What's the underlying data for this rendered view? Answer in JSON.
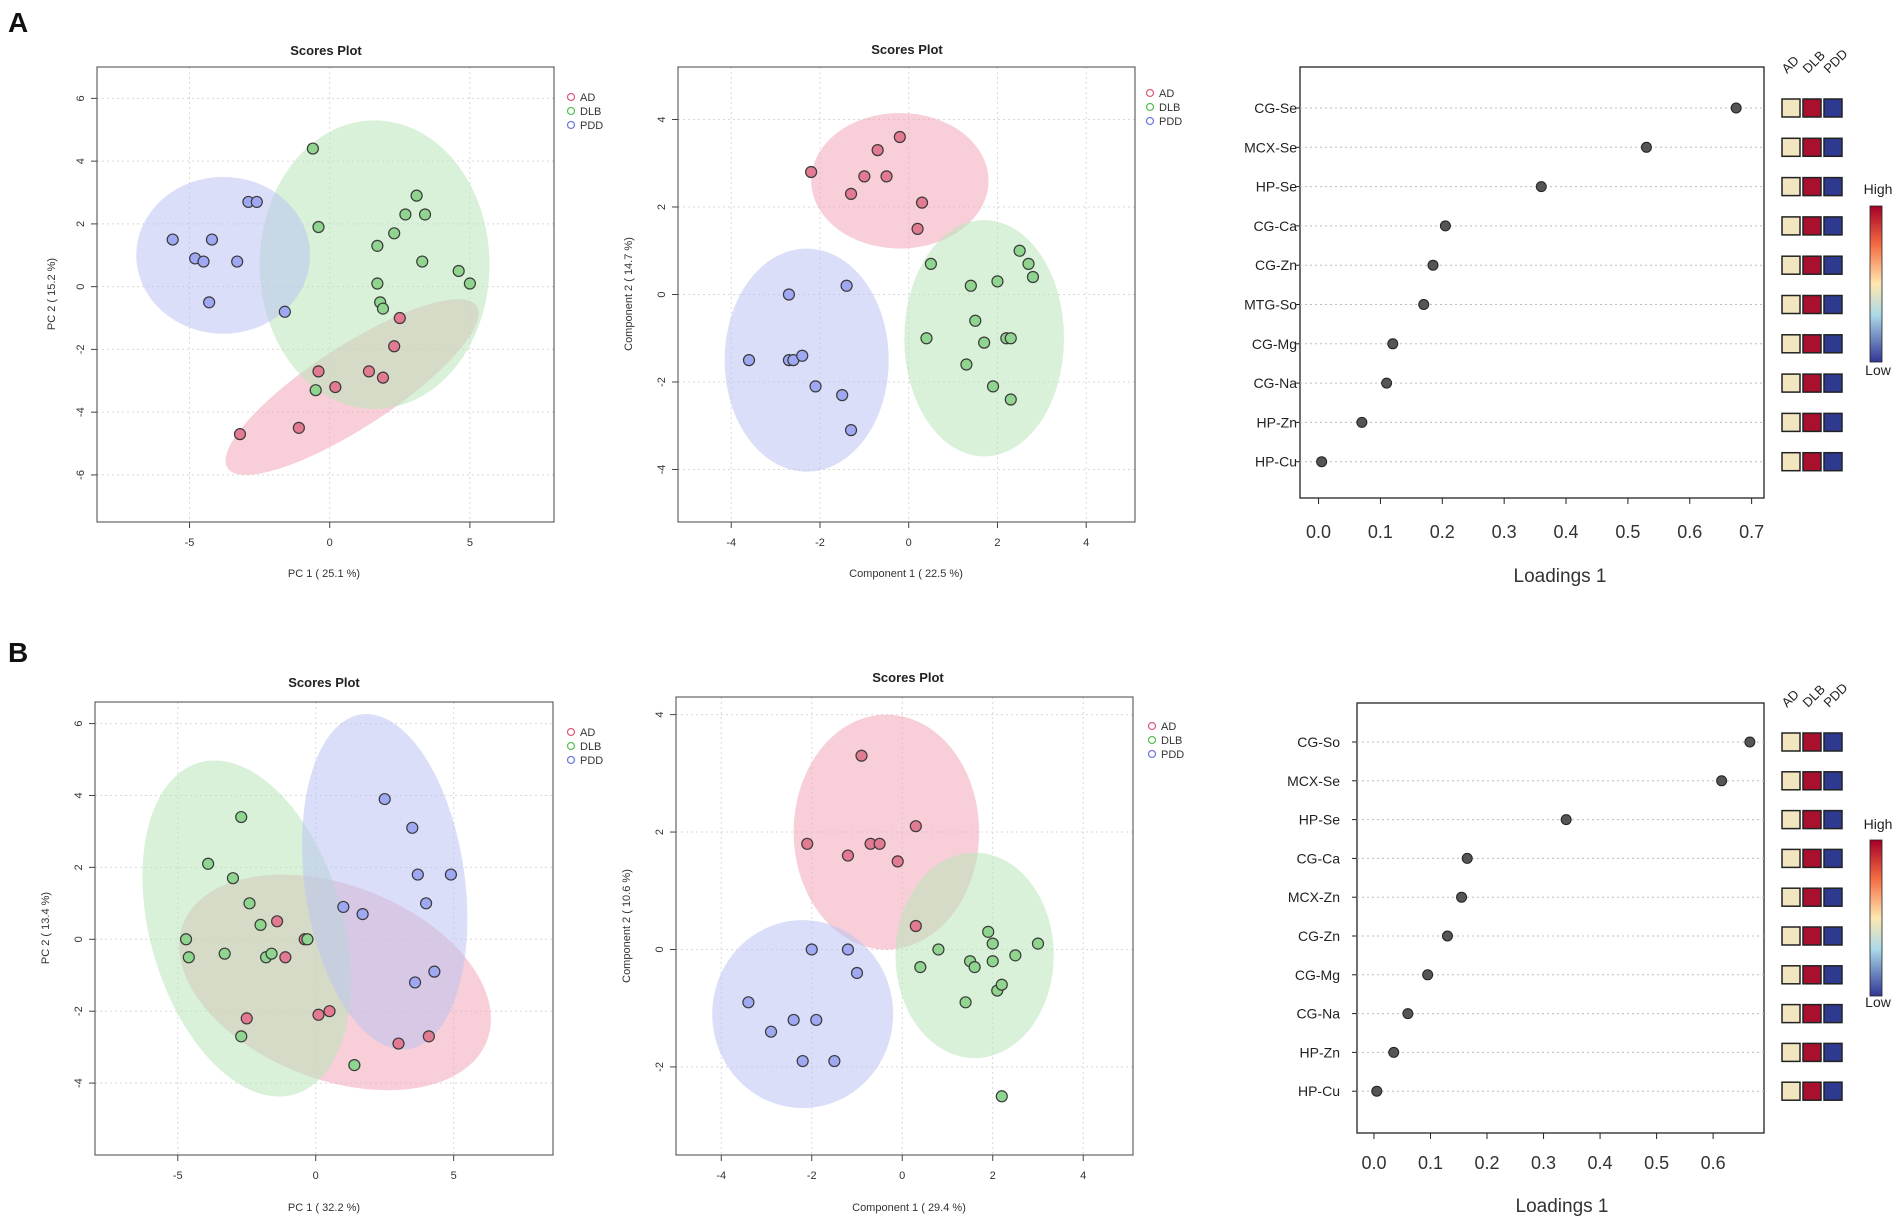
{
  "panels": [
    {
      "label": "A",
      "scores": {
        "title": "Scores Plot",
        "xlabel": "PC 1 ( 25.1 %)",
        "ylabel": "PC 2 ( 15.2 %)",
        "xlim": [
          -8.3,
          8.0
        ],
        "ylim": [
          -7.5,
          7.0
        ],
        "xticks": [
          -5,
          0,
          5
        ],
        "yticks": [
          -6,
          -4,
          -2,
          0,
          2,
          4,
          6
        ],
        "legend": [
          "AD",
          "DLB",
          "PDD"
        ],
        "series": [
          {
            "name": "AD",
            "ellipse": {
              "cx": 0.8,
              "cy": -3.2,
              "rx": 5.3,
              "ry": 1.3,
              "angle_deg": 33
            },
            "points": [
              [
                -3.2,
                -4.7
              ],
              [
                -1.1,
                -4.5
              ],
              [
                -0.4,
                -2.7
              ],
              [
                0.2,
                -3.2
              ],
              [
                1.4,
                -2.7
              ],
              [
                1.9,
                -2.9
              ],
              [
                2.3,
                -1.9
              ],
              [
                2.5,
                -1.0
              ]
            ]
          },
          {
            "name": "DLB",
            "ellipse": {
              "cx": 1.6,
              "cy": 0.7,
              "rx": 4.1,
              "ry": 4.6,
              "angle_deg": 0
            },
            "points": [
              [
                -0.6,
                4.4
              ],
              [
                -0.4,
                1.9
              ],
              [
                1.7,
                1.3
              ],
              [
                2.3,
                1.7
              ],
              [
                2.7,
                2.3
              ],
              [
                3.1,
                2.9
              ],
              [
                3.4,
                2.3
              ],
              [
                3.3,
                0.8
              ],
              [
                4.6,
                0.5
              ],
              [
                5.0,
                0.1
              ],
              [
                1.7,
                0.1
              ],
              [
                1.8,
                -0.5
              ],
              [
                1.9,
                -0.7
              ],
              [
                -0.5,
                -3.3
              ]
            ]
          },
          {
            "name": "PDD",
            "ellipse": {
              "cx": -3.8,
              "cy": 1.0,
              "rx": 3.1,
              "ry": 2.5,
              "angle_deg": 0
            },
            "points": [
              [
                -5.6,
                1.5
              ],
              [
                -4.8,
                0.9
              ],
              [
                -4.5,
                0.8
              ],
              [
                -4.2,
                1.5
              ],
              [
                -2.9,
                2.7
              ],
              [
                -2.6,
                2.7
              ],
              [
                -3.3,
                0.8
              ],
              [
                -4.3,
                -0.5
              ],
              [
                -1.6,
                -0.8
              ]
            ]
          }
        ]
      },
      "plsda": {
        "title": "Scores Plot",
        "xlabel": "Component 1 ( 22.5 %)",
        "ylabel": "Component 2 ( 14.7 %)",
        "xlim": [
          -5.2,
          5.1
        ],
        "ylim": [
          -5.2,
          5.2
        ],
        "xticks": [
          -4,
          -2,
          0,
          2,
          4
        ],
        "yticks": [
          -4,
          -2,
          0,
          2,
          4
        ],
        "legend": [
          "AD",
          "DLB",
          "PDD"
        ],
        "series": [
          {
            "name": "AD",
            "ellipse": {
              "cx": -0.2,
              "cy": 2.6,
              "rx": 2.0,
              "ry": 1.55,
              "angle_deg": 0
            },
            "points": [
              [
                -2.2,
                2.8
              ],
              [
                -1.3,
                2.3
              ],
              [
                -1.0,
                2.7
              ],
              [
                -0.7,
                3.3
              ],
              [
                -0.5,
                2.7
              ],
              [
                -0.2,
                3.6
              ],
              [
                0.3,
                2.1
              ],
              [
                0.2,
                1.5
              ]
            ]
          },
          {
            "name": "DLB",
            "ellipse": {
              "cx": 1.7,
              "cy": -1.0,
              "rx": 1.8,
              "ry": 2.7,
              "angle_deg": 0
            },
            "points": [
              [
                0.5,
                0.7
              ],
              [
                1.4,
                0.2
              ],
              [
                2.0,
                0.3
              ],
              [
                2.5,
                1.0
              ],
              [
                2.7,
                0.7
              ],
              [
                2.8,
                0.4
              ],
              [
                1.5,
                -0.6
              ],
              [
                1.7,
                -1.1
              ],
              [
                2.2,
                -1.0
              ],
              [
                2.3,
                -1.0
              ],
              [
                0.4,
                -1.0
              ],
              [
                1.3,
                -1.6
              ],
              [
                1.9,
                -2.1
              ],
              [
                2.3,
                -2.4
              ]
            ]
          },
          {
            "name": "PDD",
            "ellipse": {
              "cx": -2.3,
              "cy": -1.5,
              "rx": 1.85,
              "ry": 2.55,
              "angle_deg": 0
            },
            "points": [
              [
                -2.7,
                0.0
              ],
              [
                -1.4,
                0.2
              ],
              [
                -3.6,
                -1.5
              ],
              [
                -2.7,
                -1.5
              ],
              [
                -2.6,
                -1.5
              ],
              [
                -2.4,
                -1.4
              ],
              [
                -2.1,
                -2.1
              ],
              [
                -1.5,
                -2.3
              ],
              [
                -1.3,
                -3.1
              ]
            ]
          }
        ]
      },
      "loadings": {
        "xlabel": "Loadings 1",
        "xlim": [
          -0.03,
          0.72
        ],
        "xticks": [
          0.0,
          0.1,
          0.2,
          0.3,
          0.4,
          0.5,
          0.6,
          0.7
        ],
        "xtick_labels": [
          "0.0",
          "0.1",
          "0.2",
          "0.3",
          "0.4",
          "0.5",
          "0.6",
          "0.7"
        ],
        "labels": [
          "CG-Se",
          "MCX-Se",
          "HP-Se",
          "CG-Ca",
          "CG-Zn",
          "MTG-So",
          "CG-Mg",
          "CG-Na",
          "HP-Zn",
          "HP-Cu"
        ],
        "values": [
          0.675,
          0.53,
          0.36,
          0.205,
          0.185,
          0.17,
          0.12,
          0.11,
          0.07,
          0.005
        ],
        "groups": [
          "AD",
          "DLB",
          "PDD"
        ],
        "heat_colors": [
          "#f2e6c0",
          "#a8102e",
          "#2e3a8f"
        ],
        "scale_high": "High",
        "scale_low": "Low"
      }
    },
    {
      "label": "B",
      "scores": {
        "title": "Scores Plot",
        "xlabel": "PC 1 ( 32.2 %)",
        "ylabel": "PC 2 ( 13.4 %)",
        "xlim": [
          -8.0,
          8.6
        ],
        "ylim": [
          -6.0,
          6.6
        ],
        "xticks": [
          -5,
          0,
          5
        ],
        "yticks": [
          -4,
          -2,
          0,
          2,
          4,
          6
        ],
        "legend": [
          "AD",
          "DLB",
          "PDD"
        ],
        "series": [
          {
            "name": "AD",
            "ellipse": {
              "cx": 0.7,
              "cy": -1.2,
              "rx": 5.9,
              "ry": 2.7,
              "angle_deg": -21
            },
            "points": [
              [
                -1.4,
                0.5
              ],
              [
                -0.4,
                0.0
              ],
              [
                -1.1,
                -0.5
              ],
              [
                -2.5,
                -2.2
              ],
              [
                0.1,
                -2.1
              ],
              [
                0.5,
                -2.0
              ],
              [
                3.0,
                -2.9
              ],
              [
                4.1,
                -2.7
              ]
            ]
          },
          {
            "name": "DLB",
            "ellipse": {
              "cx": -2.5,
              "cy": 0.3,
              "rx": 3.5,
              "ry": 4.8,
              "angle_deg": 16
            },
            "points": [
              [
                -2.7,
                3.4
              ],
              [
                -3.9,
                2.1
              ],
              [
                -3.0,
                1.7
              ],
              [
                -2.4,
                1.0
              ],
              [
                -2.0,
                0.4
              ],
              [
                -4.7,
                0.0
              ],
              [
                -4.6,
                -0.5
              ],
              [
                -3.3,
                -0.4
              ],
              [
                -1.8,
                -0.5
              ],
              [
                -1.6,
                -0.4
              ],
              [
                -0.3,
                0.0
              ],
              [
                -2.7,
                -2.7
              ],
              [
                1.4,
                -3.5
              ]
            ]
          },
          {
            "name": "PDD",
            "ellipse": {
              "cx": 2.5,
              "cy": 1.6,
              "rx": 2.9,
              "ry": 4.7,
              "angle_deg": 8
            },
            "points": [
              [
                2.5,
                3.9
              ],
              [
                3.5,
                3.1
              ],
              [
                3.7,
                1.8
              ],
              [
                4.9,
                1.8
              ],
              [
                4.0,
                1.0
              ],
              [
                1.0,
                0.9
              ],
              [
                1.7,
                0.7
              ],
              [
                4.3,
                -0.9
              ],
              [
                3.6,
                -1.2
              ]
            ]
          }
        ]
      },
      "plsda": {
        "title": "Scores Plot",
        "xlabel": "Component 1 ( 29.4 %)",
        "ylabel": "Component 2 ( 10.6 %)",
        "xlim": [
          -5.0,
          5.1
        ],
        "ylim": [
          -3.5,
          4.3
        ],
        "xticks": [
          -4,
          -2,
          0,
          2,
          4
        ],
        "yticks": [
          -2,
          0,
          2,
          4
        ],
        "legend": [
          "AD",
          "DLB",
          "PDD"
        ],
        "series": [
          {
            "name": "AD",
            "ellipse": {
              "cx": -0.35,
              "cy": 2.0,
              "rx": 2.05,
              "ry": 2.0,
              "angle_deg": 0
            },
            "points": [
              [
                -0.9,
                3.3
              ],
              [
                -2.1,
                1.8
              ],
              [
                -1.2,
                1.6
              ],
              [
                -0.7,
                1.8
              ],
              [
                -0.5,
                1.8
              ],
              [
                -0.1,
                1.5
              ],
              [
                0.3,
                2.1
              ],
              [
                0.3,
                0.4
              ]
            ]
          },
          {
            "name": "DLB",
            "ellipse": {
              "cx": 1.6,
              "cy": -0.1,
              "rx": 1.75,
              "ry": 1.75,
              "angle_deg": 0
            },
            "points": [
              [
                0.4,
                -0.3
              ],
              [
                0.8,
                0.0
              ],
              [
                1.9,
                0.3
              ],
              [
                2.0,
                0.1
              ],
              [
                3.0,
                0.1
              ],
              [
                1.5,
                -0.2
              ],
              [
                1.6,
                -0.3
              ],
              [
                2.0,
                -0.2
              ],
              [
                2.5,
                -0.1
              ],
              [
                1.4,
                -0.9
              ],
              [
                2.1,
                -0.7
              ],
              [
                2.2,
                -0.6
              ],
              [
                2.2,
                -2.5
              ]
            ]
          },
          {
            "name": "PDD",
            "ellipse": {
              "cx": -2.2,
              "cy": -1.1,
              "rx": 2.0,
              "ry": 1.6,
              "angle_deg": 0
            },
            "points": [
              [
                -2.0,
                0.0
              ],
              [
                -1.2,
                0.0
              ],
              [
                -1.0,
                -0.4
              ],
              [
                -3.4,
                -0.9
              ],
              [
                -2.4,
                -1.2
              ],
              [
                -1.9,
                -1.2
              ],
              [
                -2.9,
                -1.4
              ],
              [
                -2.2,
                -1.9
              ],
              [
                -1.5,
                -1.9
              ]
            ]
          }
        ]
      },
      "loadings": {
        "xlabel": "Loadings 1",
        "xlim": [
          -0.03,
          0.69
        ],
        "xticks": [
          0.0,
          0.1,
          0.2,
          0.3,
          0.4,
          0.5,
          0.6
        ],
        "xtick_labels": [
          "0.0",
          "0.1",
          "0.2",
          "0.3",
          "0.4",
          "0.5",
          "0.6"
        ],
        "labels": [
          "CG-So",
          "MCX-Se",
          "HP-Se",
          "CG-Ca",
          "MCX-Zn",
          "CG-Zn",
          "CG-Mg",
          "CG-Na",
          "HP-Zn",
          "HP-Cu"
        ],
        "values": [
          0.665,
          0.615,
          0.34,
          0.165,
          0.155,
          0.13,
          0.095,
          0.06,
          0.035,
          0.005
        ],
        "groups": [
          "AD",
          "DLB",
          "PDD"
        ],
        "heat_colors": [
          "#f2e6c0",
          "#a8102e",
          "#2e3a8f"
        ],
        "scale_high": "High",
        "scale_low": "Low"
      }
    }
  ],
  "colors": {
    "AD": {
      "fill": "#e27a92",
      "ellipse": "#f2a7b8",
      "stroke": "#e0607d"
    },
    "DLB": {
      "fill": "#8fd48f",
      "ellipse": "#b8e6b8",
      "stroke": "#5cbf5c"
    },
    "PDD": {
      "fill": "#9fa8f2",
      "ellipse": "#bcc3f2",
      "stroke": "#6f7de0"
    }
  },
  "chart_data": [
    {
      "type": "scatter",
      "panel": "A",
      "title": "Scores Plot",
      "xlabel": "PC 1 ( 25.1 %)",
      "ylabel": "PC 2 ( 15.2 %)",
      "series": [
        "AD",
        "DLB",
        "PDD"
      ]
    },
    {
      "type": "scatter",
      "panel": "A",
      "title": "Scores Plot",
      "xlabel": "Component 1 ( 22.5 %)",
      "ylabel": "Component 2 ( 14.7 %)",
      "series": [
        "AD",
        "DLB",
        "PDD"
      ]
    },
    {
      "type": "scatter",
      "panel": "A",
      "xlabel": "Loadings 1",
      "categories": [
        "CG-Se",
        "MCX-Se",
        "HP-Se",
        "CG-Ca",
        "CG-Zn",
        "MTG-So",
        "CG-Mg",
        "CG-Na",
        "HP-Zn",
        "HP-Cu"
      ],
      "values": [
        0.675,
        0.53,
        0.36,
        0.205,
        0.185,
        0.17,
        0.12,
        0.11,
        0.07,
        0.005
      ]
    },
    {
      "type": "scatter",
      "panel": "B",
      "title": "Scores Plot",
      "xlabel": "PC 1 ( 32.2 %)",
      "ylabel": "PC 2 ( 13.4 %)",
      "series": [
        "AD",
        "DLB",
        "PDD"
      ]
    },
    {
      "type": "scatter",
      "panel": "B",
      "title": "Scores Plot",
      "xlabel": "Component 1 ( 29.4 %)",
      "ylabel": "Component 2 ( 10.6 %)",
      "series": [
        "AD",
        "DLB",
        "PDD"
      ]
    },
    {
      "type": "scatter",
      "panel": "B",
      "xlabel": "Loadings 1",
      "categories": [
        "CG-So",
        "MCX-Se",
        "HP-Se",
        "CG-Ca",
        "MCX-Zn",
        "CG-Zn",
        "CG-Mg",
        "CG-Na",
        "HP-Zn",
        "HP-Cu"
      ],
      "values": [
        0.665,
        0.615,
        0.34,
        0.165,
        0.155,
        0.13,
        0.095,
        0.06,
        0.035,
        0.005
      ]
    }
  ]
}
